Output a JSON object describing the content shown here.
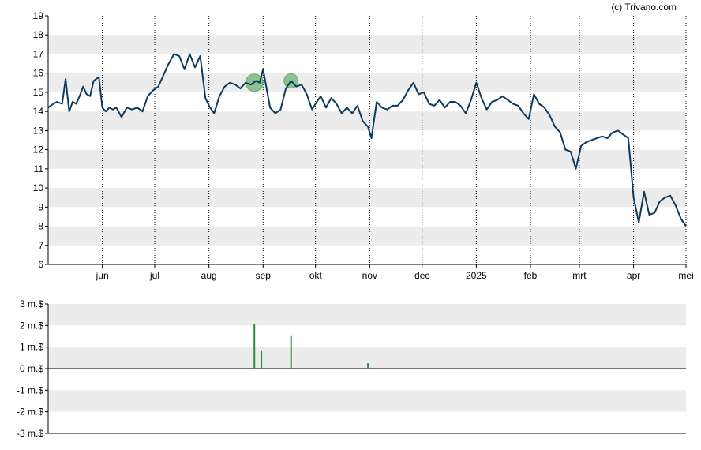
{
  "credit": "(c) Trivano.com",
  "colors": {
    "price_line": "#0e3a5c",
    "band": "#ececec",
    "grid_vertical": "#000000",
    "marker_fill": "#3f9f48",
    "volume_bar": "#2e8b3e",
    "axis": "#000000"
  },
  "chart_data": [
    {
      "type": "line",
      "name": "price",
      "ylim": [
        6,
        19
      ],
      "y_ticks": [
        "6",
        "7",
        "8",
        "9",
        "10",
        "11",
        "12",
        "13",
        "14",
        "15",
        "16",
        "17",
        "18",
        "19"
      ],
      "x_tick_labels": [
        "jun",
        "jul",
        "aug",
        "sep",
        "okt",
        "nov",
        "dec",
        "2025",
        "feb",
        "mrt",
        "apr",
        "mei"
      ],
      "x_tick_dates": [
        "2024-06-01",
        "2024-07-01",
        "2024-08-01",
        "2024-09-01",
        "2024-10-01",
        "2024-11-01",
        "2024-12-01",
        "2025-01-01",
        "2025-02-01",
        "2025-03-01",
        "2025-04-01",
        "2025-05-01"
      ],
      "xlim": [
        "2024-05-01",
        "2025-05-01"
      ],
      "grid": "vertical dotted at month ticks, alternating horizontal bands",
      "series": [
        {
          "x": [
            "2024-05-01",
            "2024-05-04",
            "2024-05-06",
            "2024-05-09",
            "2024-05-11",
            "2024-05-13",
            "2024-05-15",
            "2024-05-17",
            "2024-05-19",
            "2024-05-21",
            "2024-05-23",
            "2024-05-25",
            "2024-05-27",
            "2024-05-30",
            "2024-06-01",
            "2024-06-03",
            "2024-06-05",
            "2024-06-07",
            "2024-06-09",
            "2024-06-12",
            "2024-06-15",
            "2024-06-18",
            "2024-06-21",
            "2024-06-24",
            "2024-06-27",
            "2024-06-30",
            "2024-07-03",
            "2024-07-06",
            "2024-07-09",
            "2024-07-12",
            "2024-07-15",
            "2024-07-18",
            "2024-07-21",
            "2024-07-24",
            "2024-07-27",
            "2024-07-30",
            "2024-08-01",
            "2024-08-04",
            "2024-08-07",
            "2024-08-10",
            "2024-08-13",
            "2024-08-16",
            "2024-08-19",
            "2024-08-22",
            "2024-08-25",
            "2024-08-28",
            "2024-08-30",
            "2024-09-01",
            "2024-09-03",
            "2024-09-05",
            "2024-09-08",
            "2024-09-11",
            "2024-09-14",
            "2024-09-17",
            "2024-09-20",
            "2024-09-23",
            "2024-09-26",
            "2024-09-29",
            "2024-10-01",
            "2024-10-04",
            "2024-10-07",
            "2024-10-10",
            "2024-10-13",
            "2024-10-16",
            "2024-10-19",
            "2024-10-22",
            "2024-10-25",
            "2024-10-28",
            "2024-10-31",
            "2024-11-02",
            "2024-11-05",
            "2024-11-08",
            "2024-11-11",
            "2024-11-14",
            "2024-11-17",
            "2024-11-20",
            "2024-11-23",
            "2024-11-26",
            "2024-11-29",
            "2024-12-02",
            "2024-12-05",
            "2024-12-08",
            "2024-12-11",
            "2024-12-14",
            "2024-12-17",
            "2024-12-20",
            "2024-12-23",
            "2024-12-26",
            "2024-12-29",
            "2025-01-01",
            "2025-01-04",
            "2025-01-07",
            "2025-01-10",
            "2025-01-13",
            "2025-01-16",
            "2025-01-19",
            "2025-01-22",
            "2025-01-25",
            "2025-01-28",
            "2025-01-31",
            "2025-02-03",
            "2025-02-06",
            "2025-02-09",
            "2025-02-12",
            "2025-02-15",
            "2025-02-18",
            "2025-02-21",
            "2025-02-24",
            "2025-02-27",
            "2025-03-02",
            "2025-03-05",
            "2025-03-08",
            "2025-03-11",
            "2025-03-14",
            "2025-03-17",
            "2025-03-20",
            "2025-03-23",
            "2025-03-26",
            "2025-03-29",
            "2025-04-01",
            "2025-04-04",
            "2025-04-07",
            "2025-04-10",
            "2025-04-13",
            "2025-04-16",
            "2025-04-19",
            "2025-04-22",
            "2025-04-25",
            "2025-04-28",
            "2025-05-01"
          ],
          "y": [
            14.2,
            14.4,
            14.5,
            14.4,
            15.7,
            14.0,
            14.5,
            14.4,
            14.8,
            15.3,
            14.9,
            14.8,
            15.6,
            15.8,
            14.2,
            14.0,
            14.2,
            14.1,
            14.2,
            13.7,
            14.2,
            14.1,
            14.2,
            14.0,
            14.8,
            15.1,
            15.3,
            15.9,
            16.5,
            17.0,
            16.9,
            16.2,
            17.0,
            16.3,
            16.9,
            14.7,
            14.3,
            13.9,
            14.8,
            15.3,
            15.5,
            15.4,
            15.2,
            15.5,
            15.4,
            15.6,
            15.5,
            16.2,
            15.2,
            14.2,
            13.9,
            14.1,
            15.2,
            15.6,
            15.3,
            15.4,
            14.9,
            14.1,
            14.4,
            14.8,
            14.2,
            14.7,
            14.4,
            13.9,
            14.2,
            13.9,
            14.3,
            13.5,
            13.2,
            12.6,
            14.5,
            14.2,
            14.1,
            14.3,
            14.3,
            14.6,
            15.1,
            15.5,
            14.9,
            15.0,
            14.4,
            14.3,
            14.6,
            14.2,
            14.5,
            14.5,
            14.3,
            13.9,
            14.6,
            15.5,
            14.7,
            14.1,
            14.5,
            14.6,
            14.8,
            14.6,
            14.4,
            14.3,
            13.9,
            13.6,
            14.9,
            14.4,
            14.2,
            13.8,
            13.2,
            12.9,
            12.0,
            11.9,
            11.0,
            12.2,
            12.4,
            12.5,
            12.6,
            12.7,
            12.6,
            12.9,
            13.0,
            12.8,
            12.6,
            9.5,
            8.2,
            9.8,
            8.6,
            8.7,
            9.3,
            9.5,
            9.6,
            9.1,
            8.4,
            8.0
          ]
        }
      ]
    },
    {
      "type": "bar",
      "name": "volume",
      "ylim": [
        -3,
        3
      ],
      "y_ticks": [
        "-3 m.$",
        "-2 m.$",
        "-1 m.$",
        "0 m.$",
        "1 m.$",
        "2 m.$",
        "3 m.$"
      ],
      "grid": "alternating horizontal bands",
      "series": [
        {
          "x": [
            "2024-08-27",
            "2024-08-31",
            "2024-09-17",
            "2024-10-31"
          ],
          "values": [
            2.05,
            0.85,
            1.55,
            0.25
          ]
        }
      ]
    }
  ],
  "markers": [
    {
      "date": "2024-08-27",
      "value": 15.5,
      "size": "large"
    },
    {
      "date": "2024-09-17",
      "value": 15.6,
      "size": "small"
    }
  ]
}
